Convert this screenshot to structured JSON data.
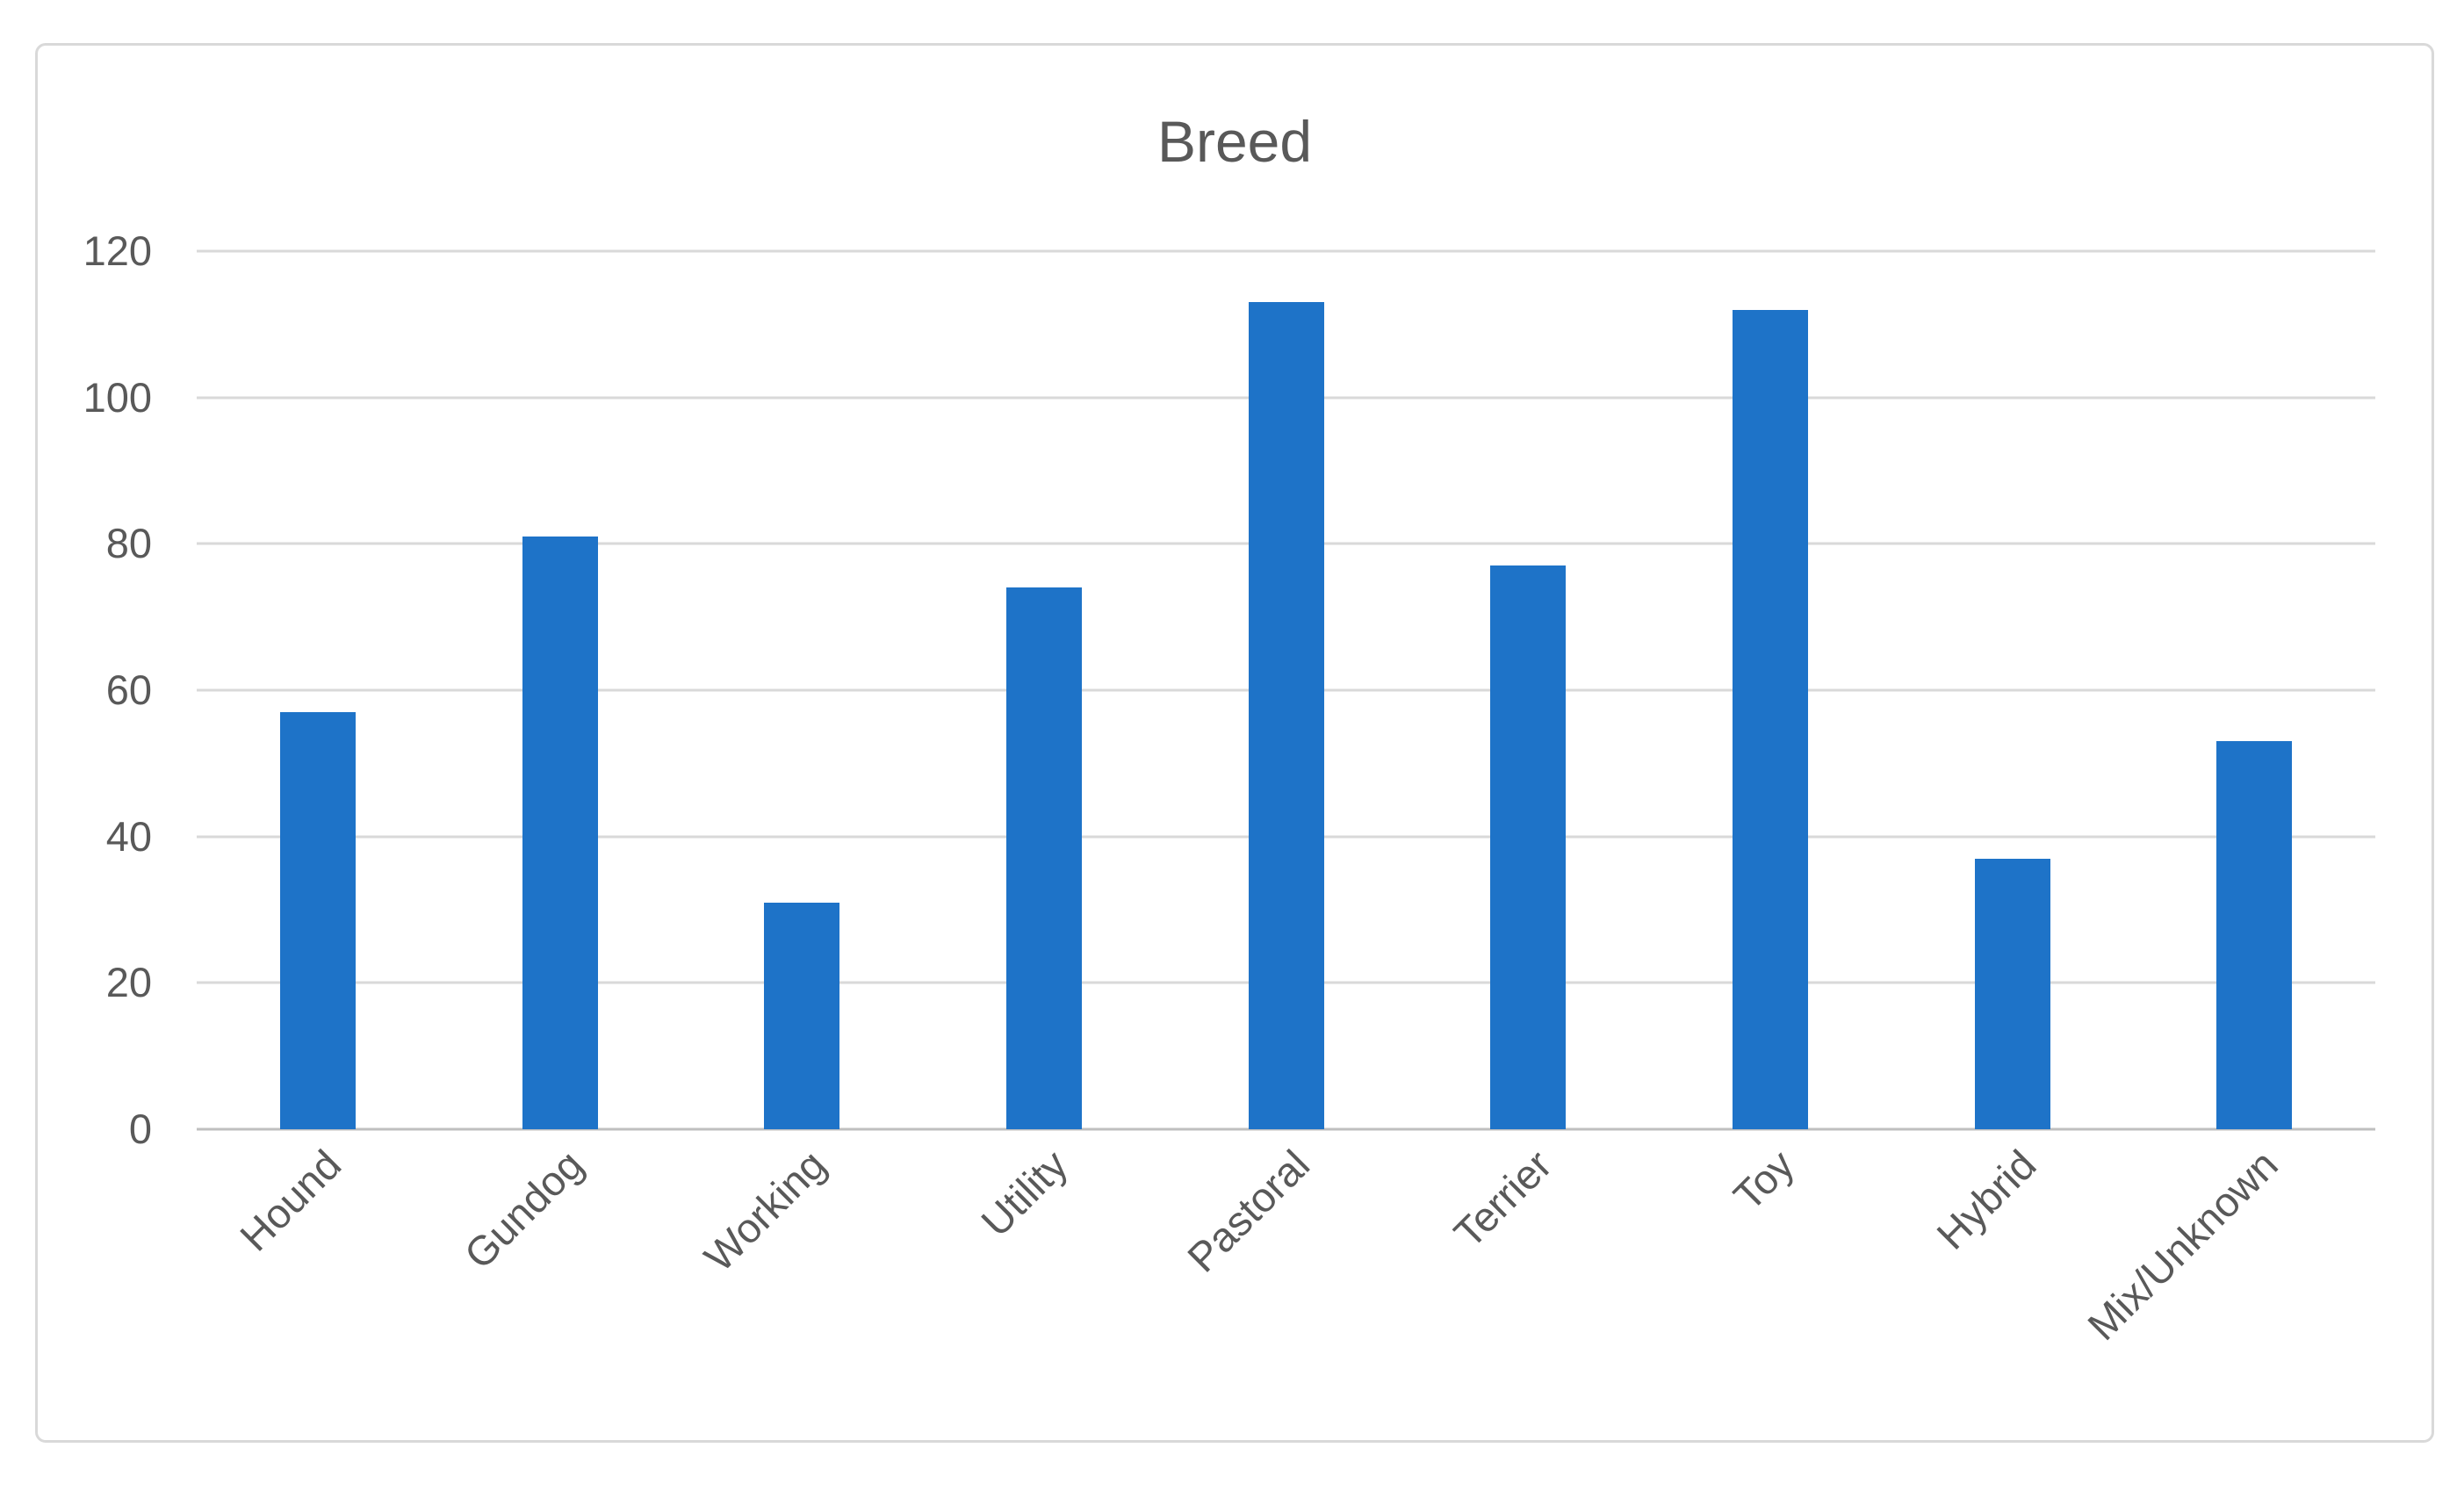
{
  "chart": {
    "colors": {
      "bar": "#1e73c8",
      "gridline": "#d9d9d9",
      "axis_line": "#bfbfbf",
      "text": "#595959",
      "frame_border": "#d9d9d9",
      "background": "#ffffff"
    }
  },
  "chart_data": {
    "type": "bar",
    "title": "Breed",
    "categories": [
      "Hound",
      "Gundog",
      "Working",
      "Utility",
      "Pastoral",
      "Terrier",
      "Toy",
      "Hybrid",
      "Mix/Unknown"
    ],
    "values": [
      57,
      81,
      31,
      74,
      113,
      77,
      112,
      37,
      53
    ],
    "xlabel": "",
    "ylabel": "",
    "ylim": [
      0,
      120
    ],
    "yticks": [
      0,
      20,
      40,
      60,
      80,
      100,
      120
    ],
    "grid": true,
    "legend": false,
    "bar_color": "#1e73c8",
    "xtick_rotation_deg": 45
  }
}
